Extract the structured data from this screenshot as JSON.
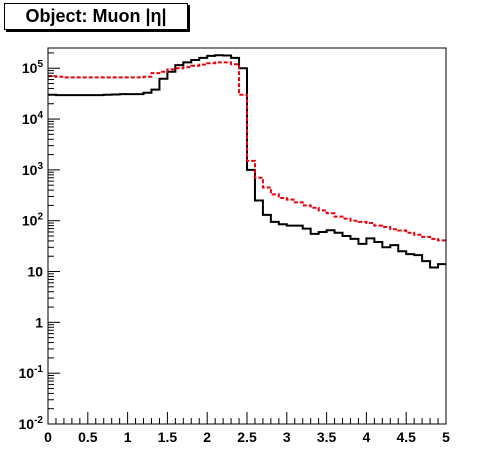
{
  "chart_data": {
    "type": "line",
    "title": "Object: Muon |η|",
    "xlabel": "",
    "ylabel": "",
    "xlim": [
      0,
      5
    ],
    "ylim": [
      0.01,
      250000
    ],
    "yscale": "log",
    "grid": false,
    "x_ticks": [
      {
        "value": 0,
        "label": "0"
      },
      {
        "value": 0.5,
        "label": "0.5"
      },
      {
        "value": 1,
        "label": "1"
      },
      {
        "value": 1.5,
        "label": "1.5"
      },
      {
        "value": 2,
        "label": "2"
      },
      {
        "value": 2.5,
        "label": "2.5"
      },
      {
        "value": 3,
        "label": "3"
      },
      {
        "value": 3.5,
        "label": "3.5"
      },
      {
        "value": 4,
        "label": "4"
      },
      {
        "value": 4.5,
        "label": "4.5"
      },
      {
        "value": 5,
        "label": "5"
      }
    ],
    "y_ticks": [
      {
        "value": 0.01,
        "base": "10",
        "exp": "-2"
      },
      {
        "value": 0.1,
        "base": "10",
        "exp": "-1"
      },
      {
        "value": 1,
        "base": "1",
        "exp": ""
      },
      {
        "value": 10,
        "base": "10",
        "exp": ""
      },
      {
        "value": 100,
        "base": "10",
        "exp": "2"
      },
      {
        "value": 1000,
        "base": "10",
        "exp": "3"
      },
      {
        "value": 10000,
        "base": "10",
        "exp": "4"
      },
      {
        "value": 100000,
        "base": "10",
        "exp": "5"
      }
    ],
    "bin_edges": [
      0,
      0.1,
      0.2,
      0.3,
      0.4,
      0.5,
      0.6,
      0.7,
      0.8,
      0.9,
      1.0,
      1.1,
      1.2,
      1.3,
      1.4,
      1.5,
      1.6,
      1.7,
      1.8,
      1.9,
      2.0,
      2.1,
      2.2,
      2.3,
      2.4,
      2.5,
      2.6,
      2.7,
      2.8,
      2.9,
      3.0,
      3.1,
      3.2,
      3.3,
      3.4,
      3.5,
      3.6,
      3.7,
      3.8,
      3.9,
      4.0,
      4.1,
      4.2,
      4.3,
      4.4,
      4.5,
      4.6,
      4.7,
      4.8,
      4.9,
      5.0
    ],
    "series": [
      {
        "color": "#000000",
        "style": "solid",
        "values": [
          30000,
          29500,
          29500,
          29500,
          29500,
          29500,
          29500,
          30000,
          30500,
          31000,
          31000,
          31000,
          33000,
          38000,
          62000,
          85000,
          115000,
          130000,
          145000,
          160000,
          175000,
          180000,
          178000,
          160000,
          100000,
          1000,
          250,
          130,
          95,
          85,
          80,
          80,
          70,
          55,
          60,
          65,
          58,
          50,
          44,
          35,
          45,
          38,
          30,
          33,
          25,
          22,
          21,
          16,
          12,
          14
        ]
      },
      {
        "color": "#e8000b",
        "style": "dashed",
        "values": [
          70000,
          68000,
          66000,
          66000,
          66000,
          66000,
          66000,
          66000,
          66000,
          66000,
          66000,
          66000,
          68000,
          80000,
          85000,
          95000,
          100000,
          105000,
          112000,
          118000,
          125000,
          130000,
          130000,
          120000,
          30000,
          1500,
          700,
          450,
          330,
          280,
          260,
          230,
          200,
          180,
          160,
          140,
          120,
          110,
          100,
          95,
          90,
          80,
          75,
          68,
          64,
          58,
          53,
          48,
          44,
          41
        ]
      }
    ]
  }
}
